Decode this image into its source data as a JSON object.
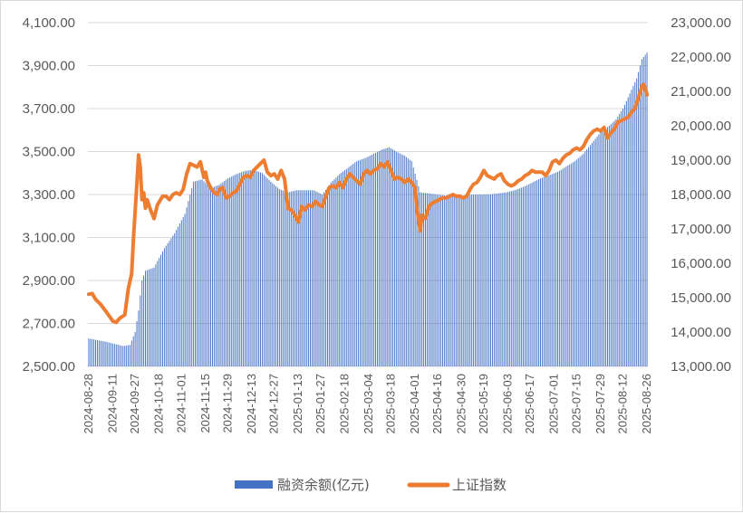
{
  "chart_data": {
    "type": "bar+line",
    "title": "",
    "colors": {
      "bars": "#4472C4",
      "line": "#ED7D31",
      "grid": "#d9d9d9",
      "text": "#595959"
    },
    "left_axis": {
      "min": 2500,
      "max": 4100,
      "step": 200,
      "tick_labels": [
        "2,500.00",
        "2,700.00",
        "2,900.00",
        "3,100.00",
        "3,300.00",
        "3,500.00",
        "3,700.00",
        "3,900.00",
        "4,100.00"
      ]
    },
    "right_axis": {
      "min": 13000,
      "max": 23000,
      "step": 1000,
      "tick_labels": [
        "13,000.00",
        "14,000.00",
        "15,000.00",
        "16,000.00",
        "17,000.00",
        "18,000.00",
        "19,000.00",
        "20,000.00",
        "21,000.00",
        "22,000.00",
        "23,000.00"
      ]
    },
    "x_tick_labels": [
      "2024-08-28",
      "2024-09-11",
      "2024-09-27",
      "2024-10-18",
      "2024-11-01",
      "2024-11-15",
      "2024-11-29",
      "2024-12-13",
      "2024-12-27",
      "2025-01-13",
      "2025-01-27",
      "2025-02-18",
      "2025-03-04",
      "2025-03-18",
      "2025-04-01",
      "2025-04-16",
      "2025-04-30",
      "2025-05-19",
      "2025-06-03",
      "2025-06-17",
      "2025-07-01",
      "2025-07-15",
      "2025-07-29",
      "2025-08-12",
      "2025-08-26"
    ],
    "legend": {
      "placement": "bottom"
    },
    "series": [
      {
        "name": "融资余额(亿元)",
        "type": "bar",
        "axis": "left",
        "anchors": [
          [
            0,
            2630
          ],
          [
            10,
            2615
          ],
          [
            20,
            2595
          ],
          [
            24,
            2600
          ],
          [
            27,
            2660
          ],
          [
            29,
            2760
          ],
          [
            31,
            2900
          ],
          [
            33,
            2945
          ],
          [
            38,
            2960
          ],
          [
            44,
            3050
          ],
          [
            50,
            3120
          ],
          [
            56,
            3210
          ],
          [
            61,
            3360
          ],
          [
            66,
            3370
          ],
          [
            71,
            3330
          ],
          [
            76,
            3345
          ],
          [
            81,
            3375
          ],
          [
            86,
            3395
          ],
          [
            91,
            3410
          ],
          [
            96,
            3415
          ],
          [
            101,
            3400
          ],
          [
            106,
            3360
          ],
          [
            111,
            3325
          ],
          [
            116,
            3310
          ],
          [
            121,
            3320
          ],
          [
            126,
            3320
          ],
          [
            131,
            3320
          ],
          [
            136,
            3300
          ],
          [
            141,
            3355
          ],
          [
            146,
            3395
          ],
          [
            151,
            3425
          ],
          [
            156,
            3455
          ],
          [
            161,
            3470
          ],
          [
            166,
            3490
          ],
          [
            171,
            3510
          ],
          [
            175,
            3520
          ],
          [
            179,
            3500
          ],
          [
            184,
            3480
          ],
          [
            188,
            3455
          ],
          [
            193,
            3310
          ],
          [
            198,
            3305
          ],
          [
            203,
            3300
          ],
          [
            208,
            3295
          ],
          [
            213,
            3295
          ],
          [
            218,
            3295
          ],
          [
            223,
            3300
          ],
          [
            228,
            3300
          ],
          [
            233,
            3300
          ],
          [
            238,
            3305
          ],
          [
            243,
            3310
          ],
          [
            248,
            3320
          ],
          [
            253,
            3335
          ],
          [
            258,
            3355
          ],
          [
            263,
            3375
          ],
          [
            268,
            3390
          ],
          [
            273,
            3405
          ],
          [
            278,
            3430
          ],
          [
            283,
            3455
          ],
          [
            288,
            3490
          ],
          [
            293,
            3540
          ],
          [
            298,
            3590
          ],
          [
            303,
            3620
          ],
          [
            307,
            3650
          ],
          [
            311,
            3700
          ],
          [
            315,
            3770
          ],
          [
            319,
            3840
          ],
          [
            322,
            3930
          ],
          [
            325,
            3960
          ]
        ]
      },
      {
        "name": "上证指数",
        "type": "line",
        "axis": "right",
        "anchors": [
          [
            0,
            15100
          ],
          [
            2,
            15120
          ],
          [
            4,
            14950
          ],
          [
            7,
            14800
          ],
          [
            10,
            14600
          ],
          [
            14,
            14320
          ],
          [
            16,
            14280
          ],
          [
            18,
            14400
          ],
          [
            21,
            14500
          ],
          [
            23,
            15250
          ],
          [
            25,
            15700
          ],
          [
            26,
            16700
          ],
          [
            28,
            18300
          ],
          [
            29,
            19150
          ],
          [
            30,
            18800
          ],
          [
            31,
            17850
          ],
          [
            32,
            18050
          ],
          [
            33,
            17600
          ],
          [
            34,
            17850
          ],
          [
            36,
            17550
          ],
          [
            38,
            17300
          ],
          [
            40,
            17700
          ],
          [
            43,
            17950
          ],
          [
            45,
            17950
          ],
          [
            47,
            17850
          ],
          [
            49,
            18000
          ],
          [
            51,
            18050
          ],
          [
            53,
            18000
          ],
          [
            55,
            18150
          ],
          [
            57,
            18600
          ],
          [
            59,
            18900
          ],
          [
            61,
            18850
          ],
          [
            63,
            18800
          ],
          [
            65,
            18950
          ],
          [
            67,
            18500
          ],
          [
            68,
            18650
          ],
          [
            69,
            18400
          ],
          [
            71,
            18200
          ],
          [
            73,
            18050
          ],
          [
            75,
            18000
          ],
          [
            76,
            18150
          ],
          [
            78,
            18200
          ],
          [
            80,
            17900
          ],
          [
            82,
            17950
          ],
          [
            84,
            18050
          ],
          [
            86,
            18100
          ],
          [
            88,
            18300
          ],
          [
            90,
            18500
          ],
          [
            92,
            18550
          ],
          [
            94,
            18500
          ],
          [
            96,
            18700
          ],
          [
            98,
            18800
          ],
          [
            100,
            18900
          ],
          [
            102,
            19000
          ],
          [
            104,
            18650
          ],
          [
            106,
            18550
          ],
          [
            108,
            18600
          ],
          [
            110,
            18450
          ],
          [
            112,
            18700
          ],
          [
            114,
            18450
          ],
          [
            116,
            17600
          ],
          [
            118,
            17550
          ],
          [
            120,
            17400
          ],
          [
            122,
            17200
          ],
          [
            124,
            17650
          ],
          [
            126,
            17550
          ],
          [
            128,
            17700
          ],
          [
            130,
            17650
          ],
          [
            132,
            17800
          ],
          [
            134,
            17700
          ],
          [
            136,
            17650
          ],
          [
            138,
            17950
          ],
          [
            140,
            18200
          ],
          [
            142,
            18250
          ],
          [
            144,
            18200
          ],
          [
            146,
            18350
          ],
          [
            148,
            18200
          ],
          [
            150,
            18450
          ],
          [
            152,
            18600
          ],
          [
            154,
            18500
          ],
          [
            156,
            18400
          ],
          [
            158,
            18300
          ],
          [
            160,
            18600
          ],
          [
            162,
            18700
          ],
          [
            164,
            18600
          ],
          [
            166,
            18700
          ],
          [
            168,
            18750
          ],
          [
            170,
            18900
          ],
          [
            172,
            18800
          ],
          [
            174,
            18950
          ],
          [
            176,
            18700
          ],
          [
            178,
            18450
          ],
          [
            180,
            18500
          ],
          [
            182,
            18450
          ],
          [
            184,
            18350
          ],
          [
            186,
            18450
          ],
          [
            188,
            18350
          ],
          [
            190,
            18200
          ],
          [
            191,
            17600
          ],
          [
            193,
            16950
          ],
          [
            194,
            17400
          ],
          [
            196,
            17300
          ],
          [
            198,
            17650
          ],
          [
            200,
            17750
          ],
          [
            202,
            17800
          ],
          [
            204,
            17850
          ],
          [
            206,
            17900
          ],
          [
            208,
            17900
          ],
          [
            210,
            17950
          ],
          [
            212,
            18000
          ],
          [
            214,
            17950
          ],
          [
            216,
            17950
          ],
          [
            218,
            17900
          ],
          [
            220,
            17950
          ],
          [
            222,
            18150
          ],
          [
            224,
            18300
          ],
          [
            226,
            18350
          ],
          [
            228,
            18500
          ],
          [
            230,
            18700
          ],
          [
            232,
            18550
          ],
          [
            234,
            18500
          ],
          [
            236,
            18450
          ],
          [
            238,
            18550
          ],
          [
            240,
            18600
          ],
          [
            242,
            18400
          ],
          [
            244,
            18300
          ],
          [
            246,
            18250
          ],
          [
            248,
            18300
          ],
          [
            250,
            18400
          ],
          [
            252,
            18450
          ],
          [
            254,
            18550
          ],
          [
            256,
            18600
          ],
          [
            258,
            18700
          ],
          [
            260,
            18650
          ],
          [
            262,
            18650
          ],
          [
            264,
            18650
          ],
          [
            266,
            18550
          ],
          [
            268,
            18700
          ],
          [
            270,
            18950
          ],
          [
            272,
            19000
          ],
          [
            274,
            18900
          ],
          [
            276,
            19050
          ],
          [
            278,
            19150
          ],
          [
            280,
            19200
          ],
          [
            282,
            19300
          ],
          [
            284,
            19350
          ],
          [
            286,
            19300
          ],
          [
            288,
            19400
          ],
          [
            290,
            19600
          ],
          [
            292,
            19750
          ],
          [
            294,
            19850
          ],
          [
            296,
            19900
          ],
          [
            298,
            19850
          ],
          [
            300,
            19950
          ],
          [
            302,
            19650
          ],
          [
            304,
            19800
          ],
          [
            306,
            19900
          ],
          [
            308,
            20100
          ],
          [
            310,
            20150
          ],
          [
            312,
            20200
          ],
          [
            314,
            20250
          ],
          [
            316,
            20400
          ],
          [
            318,
            20500
          ],
          [
            320,
            20800
          ],
          [
            322,
            21150
          ],
          [
            323,
            21200
          ],
          [
            324,
            21100
          ],
          [
            325,
            20900
          ]
        ]
      }
    ]
  }
}
